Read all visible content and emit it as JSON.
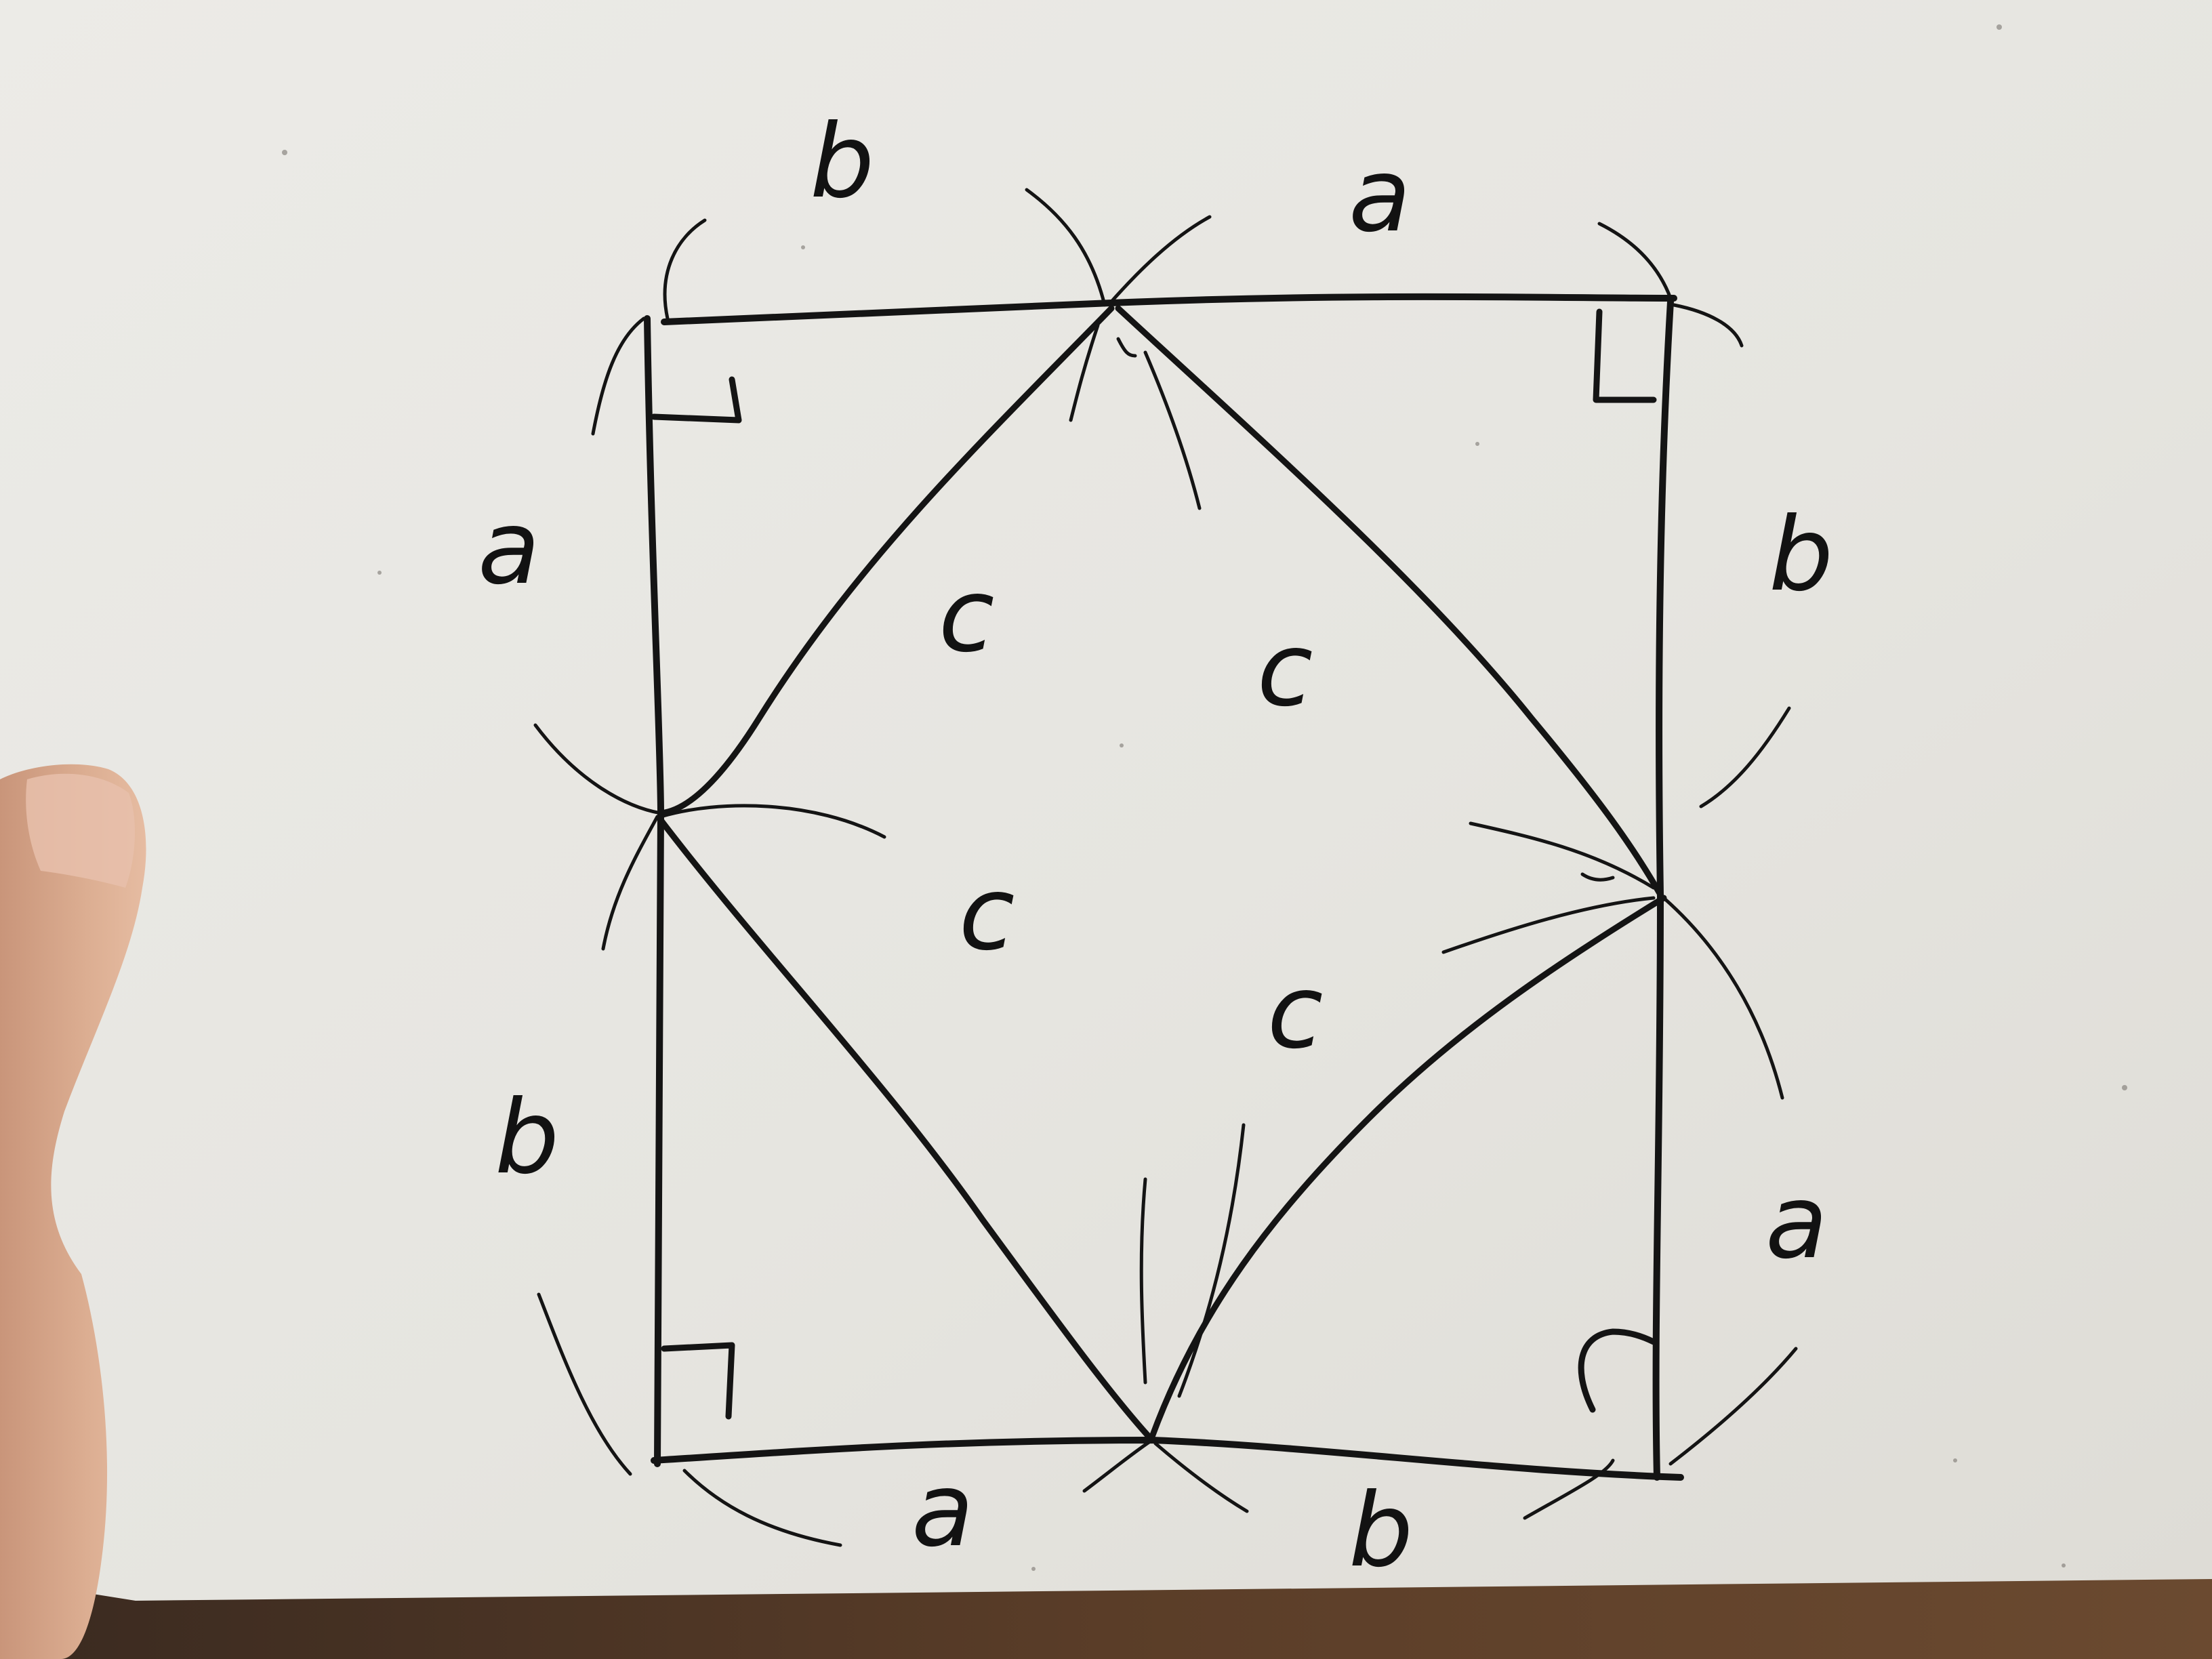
{
  "photo": {
    "subject": "hand-drawn square proof sketch on a white board",
    "colors": {
      "paper": "#e8e6e1",
      "ink": "#141414",
      "skin": "#d6a488",
      "table": "#4a3324"
    }
  },
  "labels": {
    "top_left": "b",
    "top_right": "a",
    "right_top": "b",
    "right_bottom": "a",
    "bottom_left": "a",
    "bottom_right": "b",
    "left_top": "a",
    "left_bottom": "b",
    "inner_upper_left": "c",
    "inner_upper_right": "c",
    "inner_lower_left": "c",
    "inner_lower_right": "c"
  },
  "right_angle_marks": 4
}
